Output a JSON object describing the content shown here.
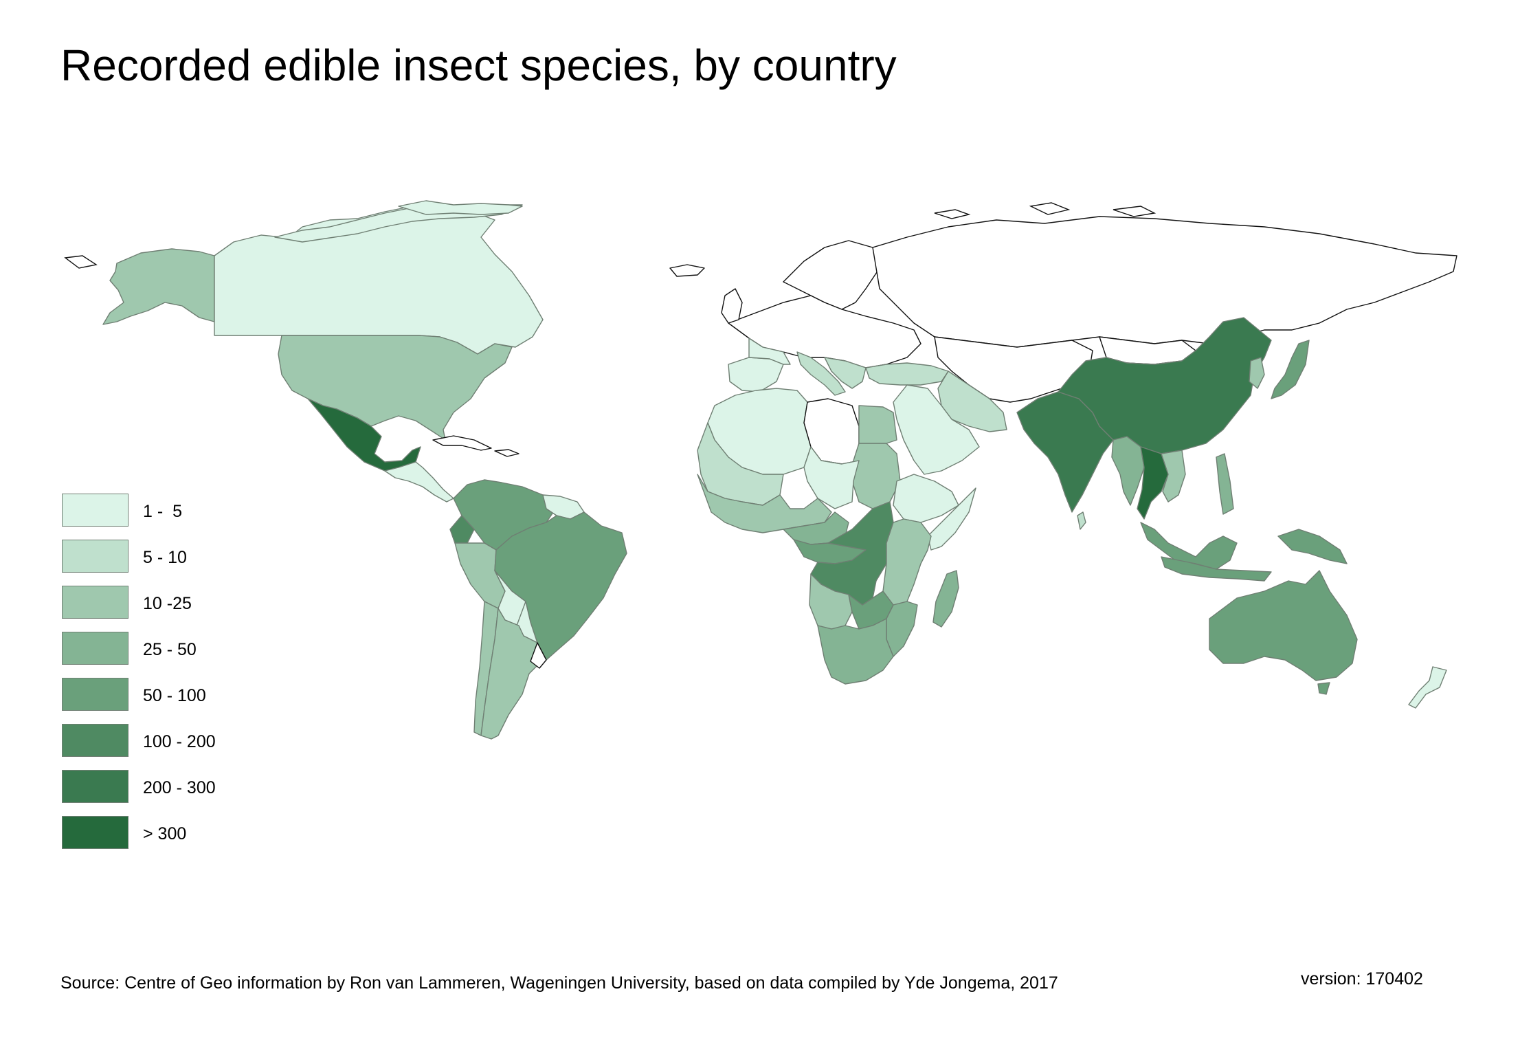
{
  "title": "Recorded edible insect species, by country",
  "legend": [
    {
      "label": "1 -  5",
      "color": "#dcf4e8"
    },
    {
      "label": "5 - 10",
      "color": "#bfe0cd"
    },
    {
      "label": "10 -25",
      "color": "#9fc8ae"
    },
    {
      "label": "25 - 50",
      "color": "#84b494"
    },
    {
      "label": "50 - 100",
      "color": "#6aa07b"
    },
    {
      "label": "100 - 200",
      "color": "#4f8a62"
    },
    {
      "label": "200 - 300",
      "color": "#3a7a50"
    },
    {
      "label": "> 300",
      "color": "#256a3c"
    }
  ],
  "source": "Source: Centre of Geo information by Ron van Lammeren, Wageningen University, based on data compiled by Yde Jongema, 2017",
  "version": "version: 170402",
  "colors": {
    "no_data": "#ffffff",
    "border": "#6f7f73",
    "outline": "#111111"
  }
}
